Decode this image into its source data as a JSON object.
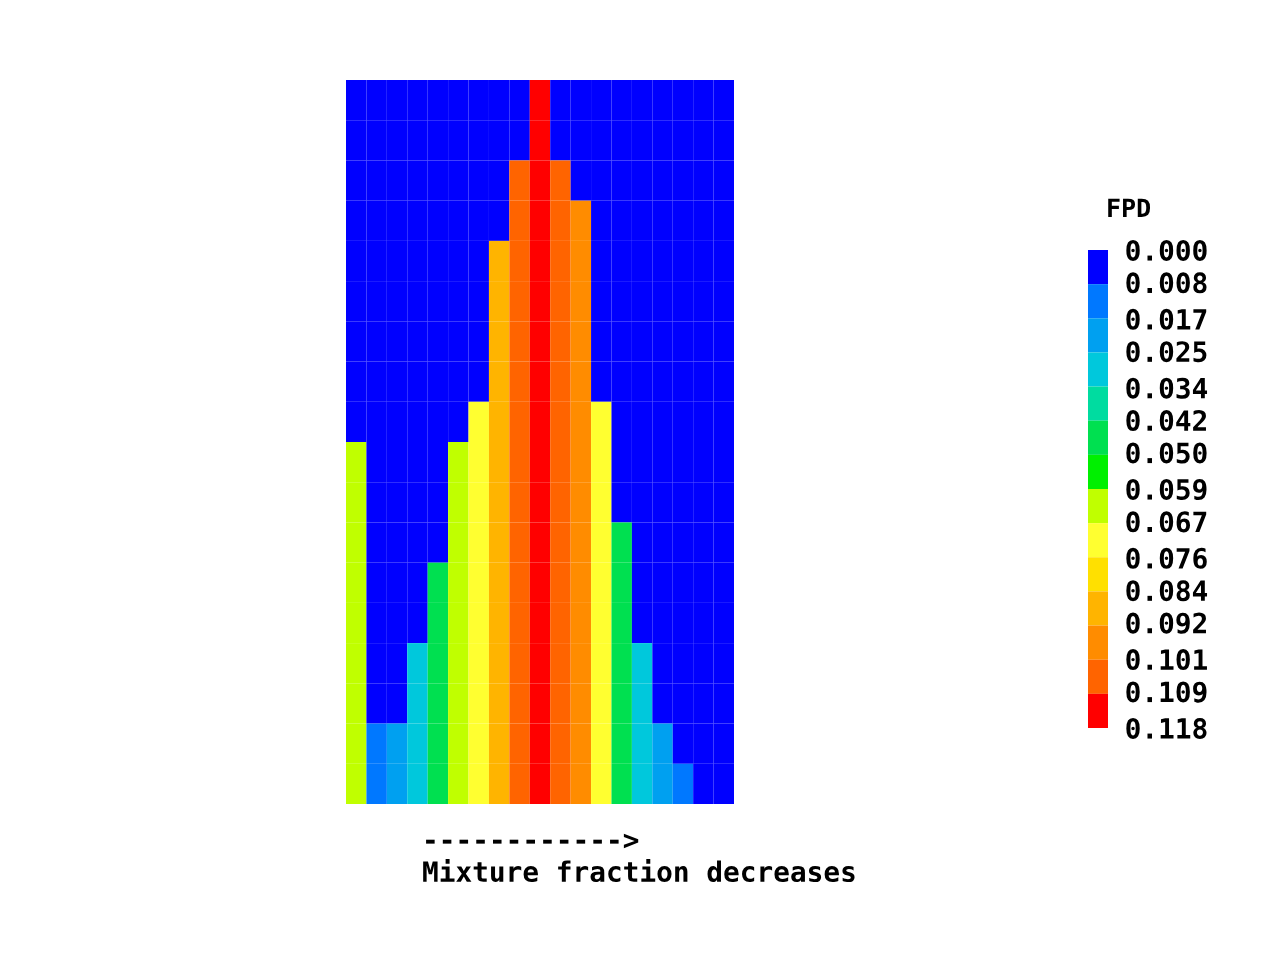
{
  "chart_data": {
    "type": "heatmap",
    "categories": [
      null,
      null,
      null,
      null,
      null,
      null,
      null,
      null,
      null,
      null,
      null,
      null,
      null,
      null,
      null,
      null,
      null,
      null,
      null
    ],
    "y_categories": [
      null,
      null,
      null,
      null,
      null,
      null,
      null,
      null,
      null,
      null,
      null,
      null,
      null,
      null,
      null,
      null,
      null,
      null
    ],
    "cells": [
      [
        0,
        0,
        0,
        0,
        0,
        0,
        0,
        0,
        0,
        0.114,
        0,
        0,
        0,
        0,
        0,
        0,
        0,
        0,
        0
      ],
      [
        0,
        0,
        0,
        0,
        0,
        0,
        0,
        0,
        0,
        0.114,
        0,
        0,
        0,
        0,
        0,
        0,
        0,
        0,
        0
      ],
      [
        0,
        0,
        0,
        0,
        0,
        0,
        0,
        0,
        0.105,
        0.114,
        0.105,
        0,
        0,
        0,
        0,
        0,
        0,
        0,
        0
      ],
      [
        0,
        0,
        0,
        0,
        0,
        0,
        0,
        0,
        0.105,
        0.114,
        0.105,
        0.097,
        0,
        0,
        0,
        0,
        0,
        0,
        0
      ],
      [
        0,
        0,
        0,
        0,
        0,
        0,
        0,
        0.088,
        0.105,
        0.114,
        0.105,
        0.097,
        0,
        0,
        0,
        0,
        0,
        0,
        0
      ],
      [
        0,
        0,
        0,
        0,
        0,
        0,
        0,
        0.088,
        0.105,
        0.114,
        0.105,
        0.097,
        0,
        0,
        0,
        0,
        0,
        0,
        0
      ],
      [
        0,
        0,
        0,
        0,
        0,
        0,
        0,
        0.088,
        0.105,
        0.114,
        0.105,
        0.097,
        0,
        0,
        0,
        0,
        0,
        0,
        0
      ],
      [
        0,
        0,
        0,
        0,
        0,
        0,
        0,
        0.088,
        0.105,
        0.114,
        0.105,
        0.097,
        0,
        0,
        0,
        0,
        0,
        0,
        0
      ],
      [
        0,
        0,
        0,
        0,
        0,
        0,
        0.072,
        0.088,
        0.105,
        0.114,
        0.105,
        0.097,
        0.072,
        0,
        0,
        0,
        0,
        0,
        0
      ],
      [
        0.063,
        0,
        0,
        0,
        0,
        0.063,
        0.072,
        0.088,
        0.105,
        0.114,
        0.105,
        0.097,
        0.072,
        0,
        0,
        0,
        0,
        0,
        0
      ],
      [
        0.063,
        0,
        0,
        0,
        0,
        0.063,
        0.072,
        0.088,
        0.105,
        0.114,
        0.105,
        0.097,
        0.072,
        0,
        0,
        0,
        0,
        0,
        0
      ],
      [
        0.063,
        0,
        0,
        0,
        0,
        0.063,
        0.072,
        0.088,
        0.105,
        0.114,
        0.105,
        0.097,
        0.072,
        0.046,
        0,
        0,
        0,
        0,
        0
      ],
      [
        0.063,
        0,
        0,
        0,
        0.046,
        0.063,
        0.072,
        0.088,
        0.105,
        0.114,
        0.105,
        0.097,
        0.072,
        0.046,
        0,
        0,
        0,
        0,
        0
      ],
      [
        0.063,
        0,
        0,
        0,
        0.046,
        0.063,
        0.072,
        0.088,
        0.105,
        0.114,
        0.105,
        0.097,
        0.072,
        0.046,
        0,
        0,
        0,
        0,
        0
      ],
      [
        0.063,
        0,
        0,
        0.03,
        0.046,
        0.063,
        0.072,
        0.088,
        0.105,
        0.114,
        0.105,
        0.097,
        0.072,
        0.046,
        0.03,
        0,
        0,
        0,
        0
      ],
      [
        0.063,
        0,
        0,
        0.03,
        0.046,
        0.063,
        0.072,
        0.088,
        0.105,
        0.114,
        0.105,
        0.097,
        0.072,
        0.046,
        0.03,
        0,
        0,
        0,
        0
      ],
      [
        0.063,
        0.013,
        0.021,
        0.03,
        0.046,
        0.063,
        0.072,
        0.088,
        0.105,
        0.114,
        0.105,
        0.097,
        0.072,
        0.046,
        0.03,
        0.021,
        0,
        0,
        0
      ],
      [
        0.063,
        0.013,
        0.021,
        0.03,
        0.046,
        0.063,
        0.072,
        0.088,
        0.105,
        0.114,
        0.105,
        0.097,
        0.072,
        0.046,
        0.03,
        0.021,
        0.013,
        0,
        0
      ]
    ],
    "colors": [
      "#0000ff",
      "#0078ff",
      "#00a0f0",
      "#00c8dc",
      "#00dca0",
      "#00e050",
      "#00f000",
      "#c0ff00",
      "#ffff30",
      "#ffe000",
      "#ffb400",
      "#ff8c00",
      "#ff6400",
      "#ff0000"
    ],
    "clabel": "FPD",
    "clim": [
      0,
      0.118
    ],
    "cticks": [
      {
        "value": 0,
        "label": "0.000"
      },
      {
        "value": 0.008,
        "label": "0.008"
      },
      {
        "value": 0.017,
        "label": "0.017"
      },
      {
        "value": 0.025,
        "label": "0.025"
      },
      {
        "value": 0.034,
        "label": "0.034"
      },
      {
        "value": 0.042,
        "label": "0.042"
      },
      {
        "value": 0.05,
        "label": "0.050"
      },
      {
        "value": 0.059,
        "label": "0.059"
      },
      {
        "value": 0.067,
        "label": "0.067"
      },
      {
        "value": 0.076,
        "label": "0.076"
      },
      {
        "value": 0.084,
        "label": "0.084"
      },
      {
        "value": 0.092,
        "label": "0.092"
      },
      {
        "value": 0.101,
        "label": "0.101"
      },
      {
        "value": 0.109,
        "label": "0.109"
      },
      {
        "value": 0.118,
        "label": "0.118"
      }
    ],
    "tick_labels": false,
    "annotations": [
      "------------>",
      "Mixture fraction decreases"
    ]
  }
}
